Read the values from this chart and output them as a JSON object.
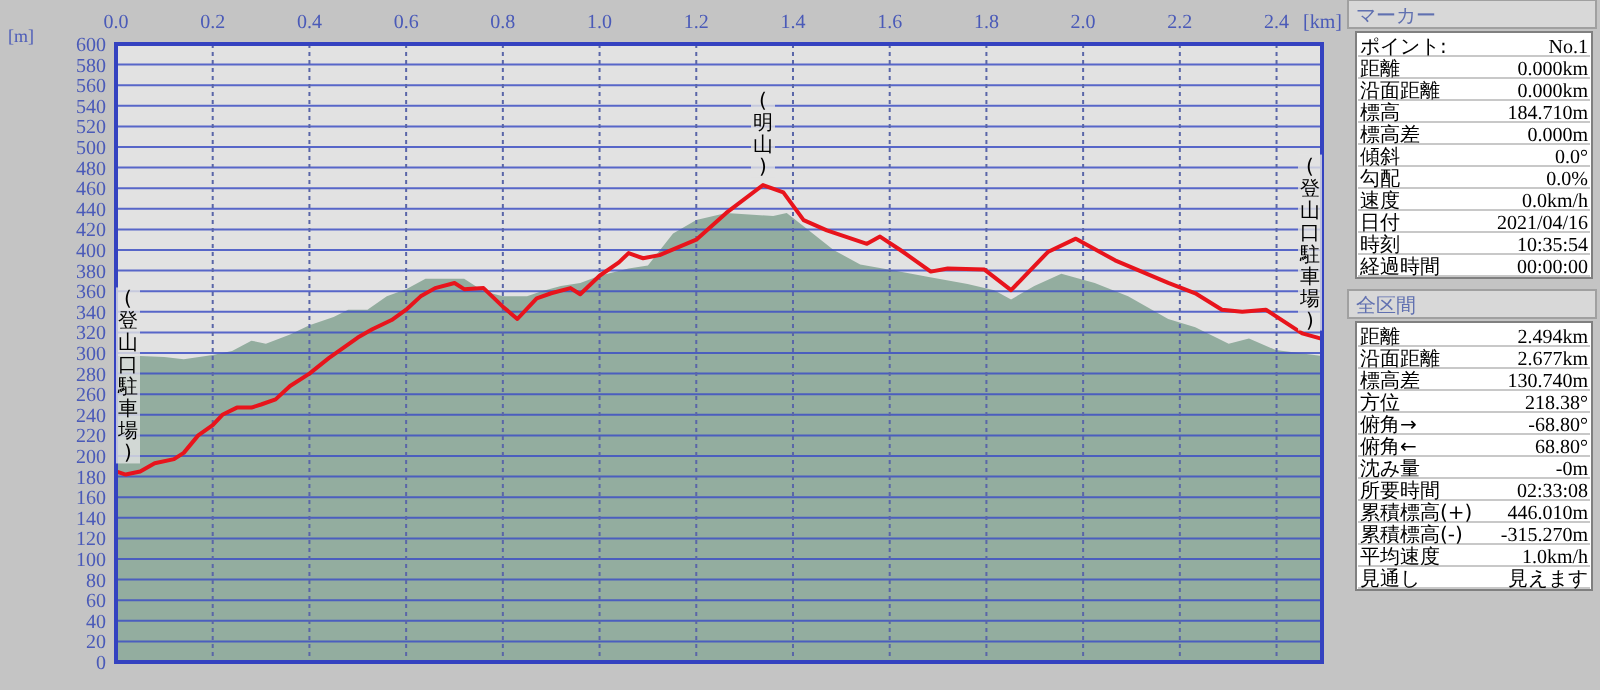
{
  "chart_data": [
    {
      "type": "area",
      "xlabel": "[km]",
      "ylabel": "[m]",
      "xlim": [
        0,
        2.494
      ],
      "xticks": [
        {
          "value": 0,
          "label": "0.0"
        },
        0.2,
        0.4,
        0.6,
        0.8,
        {
          "value": 1,
          "label": "1.0"
        },
        1.2,
        1.4,
        1.6,
        1.8,
        {
          "value": 2,
          "label": "2.0"
        },
        2.2,
        2.4
      ],
      "ylim": [
        0,
        600
      ],
      "yticks": [
        0,
        20,
        40,
        60,
        80,
        100,
        120,
        140,
        160,
        180,
        200,
        220,
        240,
        260,
        280,
        300,
        320,
        340,
        360,
        380,
        400,
        420,
        440,
        460,
        480,
        500,
        520,
        540,
        560,
        580,
        600
      ],
      "grid": true,
      "series": [
        {
          "type": "area",
          "color": "#93ad9f",
          "x": [
            0,
            0.05,
            0.1,
            0.14,
            0.2,
            0.24,
            0.28,
            0.31,
            0.36,
            0.4,
            0.45,
            0.48,
            0.52,
            0.56,
            0.6,
            0.64,
            0.68,
            0.72,
            0.76,
            0.8,
            0.85,
            0.88,
            0.92,
            0.96,
            1.0,
            1.06,
            1.1,
            1.152,
            1.2,
            1.262,
            1.359,
            1.387,
            1.422,
            1.484,
            1.539,
            1.609,
            1.678,
            1.761,
            1.816,
            1.851,
            1.899,
            1.955,
            2.024,
            2.093,
            2.176,
            2.232,
            2.301,
            2.343,
            2.398,
            2.494
          ],
          "values": [
            297,
            297,
            296,
            294,
            298,
            302,
            312,
            309,
            318,
            327,
            335,
            342,
            342,
            355,
            362,
            372,
            372,
            372,
            360,
            355,
            355,
            360,
            365,
            368,
            375,
            382,
            385,
            416,
            429,
            436,
            433,
            436,
            423,
            400,
            386,
            380,
            374,
            367,
            361,
            352,
            365,
            377,
            368,
            355,
            333,
            325,
            309,
            314,
            303,
            297
          ]
        },
        {
          "type": "line",
          "color": "#e8141c",
          "x": [
            0,
            0.02,
            0.05,
            0.08,
            0.12,
            0.14,
            0.17,
            0.2,
            0.22,
            0.25,
            0.28,
            0.3,
            0.33,
            0.36,
            0.4,
            0.44,
            0.47,
            0.5,
            0.53,
            0.57,
            0.6,
            0.63,
            0.66,
            0.7,
            0.72,
            0.76,
            0.8,
            0.83,
            0.87,
            0.9,
            0.94,
            0.96,
            1.0,
            1.04,
            1.06,
            1.09,
            1.124,
            1.2,
            1.262,
            1.338,
            1.38,
            1.422,
            1.47,
            1.553,
            1.58,
            1.622,
            1.685,
            1.72,
            1.796,
            1.851,
            1.927,
            1.985,
            2.066,
            2.176,
            2.232,
            2.287,
            2.329,
            2.378,
            2.453,
            2.492
          ],
          "values": [
            185,
            182,
            185,
            193,
            197,
            203,
            220,
            230,
            240,
            247,
            247,
            250,
            255,
            268,
            280,
            295,
            305,
            315,
            323,
            332,
            342,
            355,
            363,
            368,
            362,
            363,
            345,
            333,
            353,
            358,
            363,
            357,
            375,
            388,
            397,
            392,
            395,
            410,
            436,
            463,
            456,
            429,
            419,
            406,
            413,
            400,
            379,
            382,
            381,
            361,
            398,
            411,
            390,
            368,
            358,
            342,
            340,
            342,
            319,
            314
          ]
        }
      ],
      "annotations": [
        {
          "text": "(登山口駐車場)",
          "x": 0,
          "y": 185
        },
        {
          "text": "(明山)",
          "x": 1.338,
          "y": 463
        },
        {
          "text": "(登山口駐車場)",
          "x": 2.494,
          "y": 314
        }
      ]
    },
    {
      "type": "other",
      "title": "マーカー",
      "annotations": [
        "ポイント:",
        "No.1",
        "距離",
        "0.000km",
        "沿面距離",
        "0.000km",
        "標高",
        "184.710m",
        "標高差",
        "0.000m",
        "傾斜",
        "0.0°",
        "勾配",
        "0.0%",
        "速度",
        "0.0km/h",
        "日付",
        "2021/04/16",
        "時刻",
        "10:35:54",
        "経過時間",
        "00:00:00"
      ]
    },
    {
      "type": "other",
      "title": "全区間",
      "annotations": [
        "距離",
        "2.494km",
        "沿面距離",
        "2.677km",
        "標高差",
        "130.740m",
        "方位",
        "218.38°",
        "俯角→",
        "-68.80°",
        "俯角←",
        "68.80°",
        "沈み量",
        "-0m",
        "所要時間",
        "02:33:08",
        "累積標高(+)",
        "446.010m",
        "累積標高(-)",
        "-315.270m",
        "平均速度",
        "1.0km/h",
        "見通し",
        "見えます"
      ]
    }
  ]
}
